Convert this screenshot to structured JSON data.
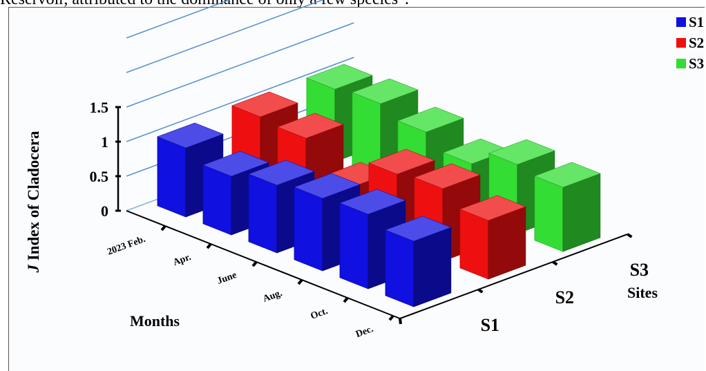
{
  "caption_fragment": "Reservoir, attributed to the dominance of only a few species\".",
  "chart_data": {
    "type": "bar3d",
    "title": "",
    "ylabel": "J Index of  Cladocera",
    "ylabel_italic_part": "J",
    "ylabel_rest": " Index of  Cladocera",
    "xlabel": "Months",
    "zlabel": "Sites",
    "categories": [
      "2023 Feb.",
      "Apr.",
      "June",
      "Aug.",
      "Oct.",
      "Dec."
    ],
    "yticks": [
      "0",
      "0.5",
      "1",
      "1.5"
    ],
    "ylim": [
      0,
      1.5
    ],
    "legend_position": "top-right",
    "series": [
      {
        "name": "S1",
        "color": "#1010e0",
        "values": [
          1.0,
          0.85,
          0.98,
          1.05,
          1.08,
          0.95
        ]
      },
      {
        "name": "S2",
        "color": "#ee1010",
        "values": [
          1.05,
          1.0,
          0.55,
          1.0,
          1.05,
          0.85
        ]
      },
      {
        "name": "S3",
        "color": "#33dd33",
        "values": [
          1.05,
          1.1,
          0.95,
          0.75,
          1.0,
          0.93
        ]
      }
    ]
  }
}
